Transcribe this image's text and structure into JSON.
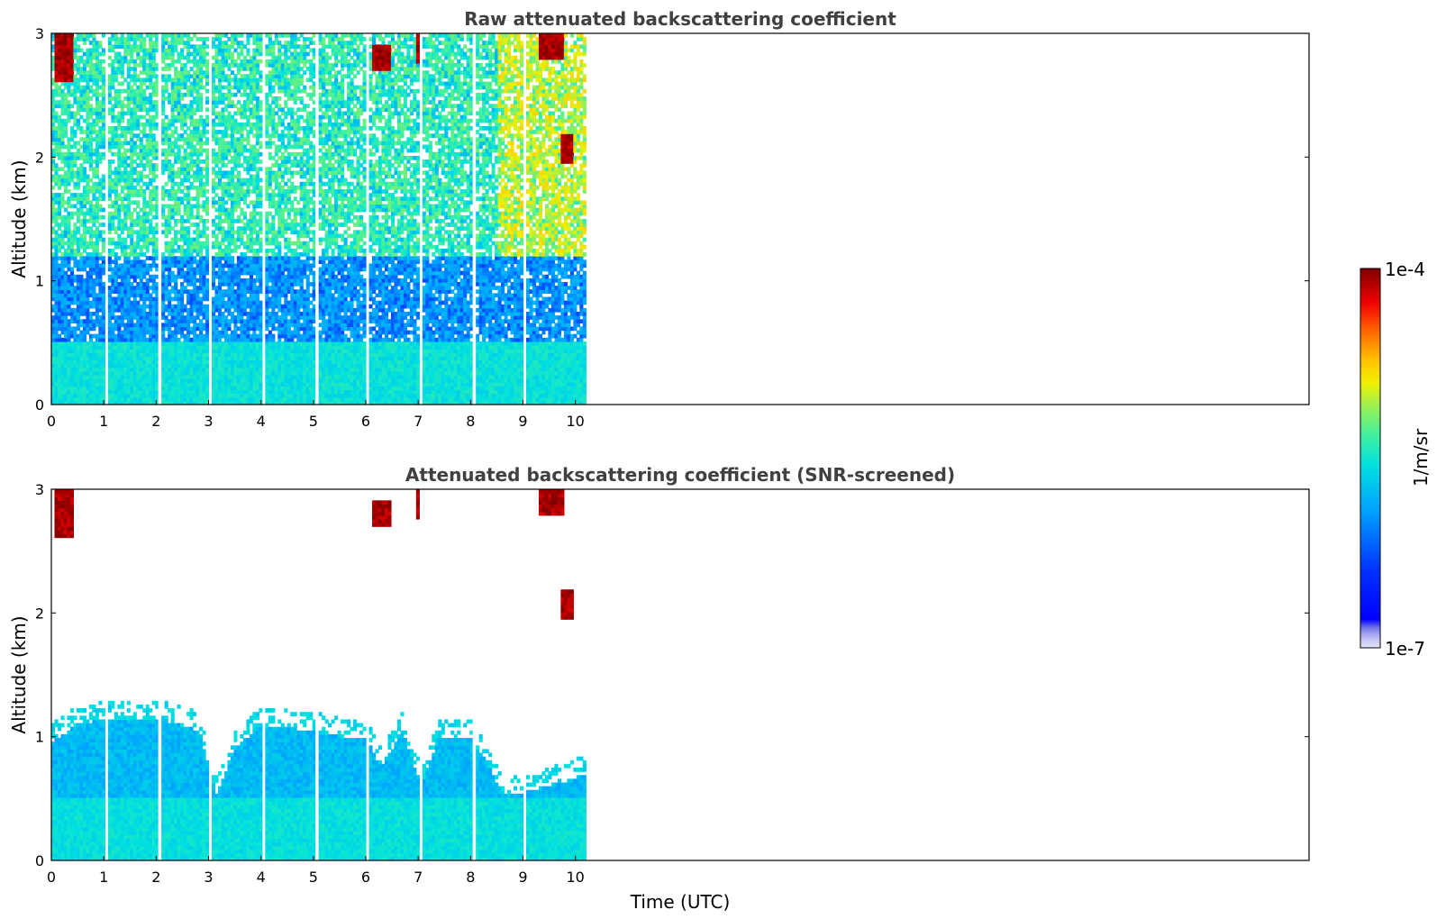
{
  "chart_data": [
    {
      "type": "heatmap",
      "title": "Raw attenuated backscattering coefficient",
      "xlabel": "",
      "ylabel": "Altitude (km)",
      "xlim": [
        0,
        24
      ],
      "ylim": [
        0,
        3
      ],
      "x_ticks": [
        0,
        1,
        2,
        3,
        4,
        5,
        6,
        7,
        8,
        9,
        10
      ],
      "y_ticks": [
        0,
        1,
        2,
        3
      ],
      "data_time_range": [
        0,
        10.2
      ],
      "time_gaps": [
        1.05,
        2.05,
        3.05,
        4.05,
        5.05,
        6.05,
        7.05,
        8.05,
        9.05
      ],
      "description_regions": [
        {
          "t": [
            0,
            10.2
          ],
          "alt": [
            0,
            0.5
          ],
          "level": "~3e-6 (blue)"
        },
        {
          "t": [
            0,
            10.2
          ],
          "alt": [
            0.5,
            1.2
          ],
          "level": "~1e-6 (dark blue, noisy)"
        },
        {
          "t": [
            0,
            10.2
          ],
          "alt": [
            1.2,
            3
          ],
          "level": "noise ~5e-6 (cyan/green speckle)"
        }
      ],
      "clouds": [
        {
          "t": [
            0.05,
            0.4
          ],
          "alt": [
            2.6,
            3.0
          ]
        },
        {
          "t": [
            6.1,
            6.45
          ],
          "alt": [
            2.7,
            2.9
          ]
        },
        {
          "t": [
            6.95,
            7.1
          ],
          "alt": [
            2.75,
            3.0
          ]
        },
        {
          "t": [
            9.3,
            9.75
          ],
          "alt": [
            2.8,
            3.0
          ]
        },
        {
          "t": [
            9.7,
            9.95
          ],
          "alt": [
            1.95,
            2.2
          ]
        }
      ]
    },
    {
      "type": "heatmap",
      "title": "Attenuated backscattering coefficient (SNR-screened)",
      "xlabel": "Time (UTC)",
      "ylabel": "Altitude (km)",
      "xlim": [
        0,
        24
      ],
      "ylim": [
        0,
        3
      ],
      "x_ticks": [
        0,
        1,
        2,
        3,
        4,
        5,
        6,
        7,
        8,
        9,
        10
      ],
      "y_ticks": [
        0,
        1,
        2,
        3
      ],
      "data_time_range": [
        0,
        10.2
      ],
      "boundary_layer_top_km": [
        [
          0,
          0.95
        ],
        [
          0.5,
          1.1
        ],
        [
          1.0,
          1.15
        ],
        [
          2.0,
          1.15
        ],
        [
          2.8,
          1.05
        ],
        [
          3.15,
          0.55
        ],
        [
          3.5,
          0.9
        ],
        [
          4.0,
          1.1
        ],
        [
          5.0,
          1.05
        ],
        [
          5.6,
          1.0
        ],
        [
          6.0,
          1.0
        ],
        [
          6.3,
          0.75
        ],
        [
          6.7,
          1.05
        ],
        [
          7.05,
          0.6
        ],
        [
          7.4,
          1.0
        ],
        [
          8.0,
          1.0
        ],
        [
          8.3,
          0.8
        ],
        [
          8.6,
          0.55
        ],
        [
          9.0,
          0.55
        ],
        [
          9.5,
          0.6
        ],
        [
          10.2,
          0.7
        ]
      ],
      "clouds": [
        {
          "t": [
            0.05,
            0.4
          ],
          "alt": [
            2.6,
            3.0
          ]
        },
        {
          "t": [
            6.1,
            6.45
          ],
          "alt": [
            2.7,
            2.9
          ]
        },
        {
          "t": [
            6.95,
            7.1
          ],
          "alt": [
            2.75,
            3.0
          ]
        },
        {
          "t": [
            9.3,
            9.75
          ],
          "alt": [
            2.8,
            3.0
          ]
        },
        {
          "t": [
            9.7,
            9.95
          ],
          "alt": [
            1.95,
            2.2
          ]
        }
      ]
    }
  ],
  "colorbar": {
    "label": "1/m/sr",
    "min_label": "1e-7",
    "max_label": "1e-4",
    "scale": "log",
    "min": 1e-07,
    "max": 0.0001,
    "colormap": "jet"
  }
}
